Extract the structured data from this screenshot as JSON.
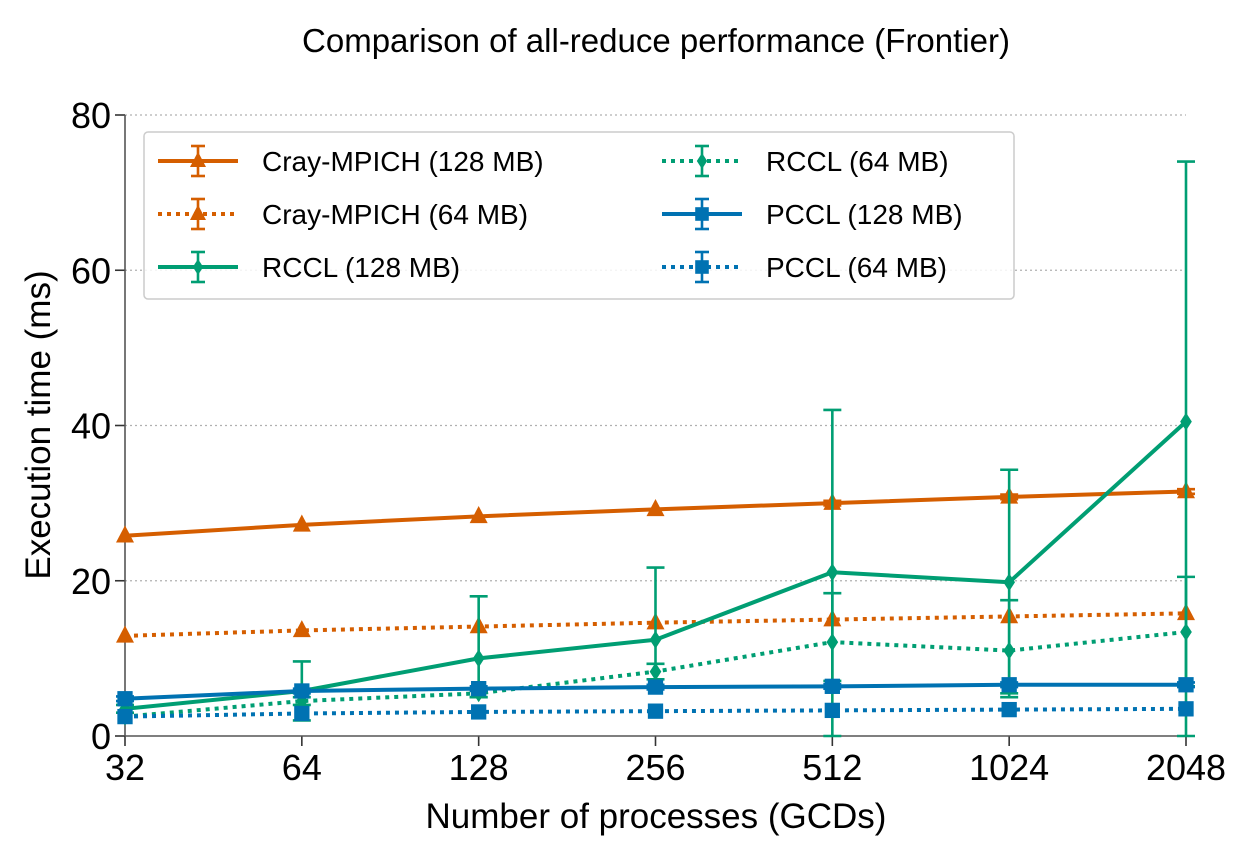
{
  "chart_data": {
    "type": "line",
    "title": "Comparison of all-reduce performance (Frontier)",
    "xlabel": "Number of processes (GCDs)",
    "ylabel": "Execution time (ms)",
    "categories": [
      "32",
      "64",
      "128",
      "256",
      "512",
      "1024",
      "2048"
    ],
    "xscale": "log2",
    "ylim": [
      0,
      80
    ],
    "yticks": [
      "0",
      "20",
      "40",
      "60",
      "80"
    ],
    "grid": "y-dotted",
    "legend": "top-left, two columns",
    "series": [
      {
        "name": "Cray-MPICH (128 MB)",
        "color": "#d55e00",
        "linestyle": "solid",
        "marker": "triangle",
        "values": [
          25.8,
          27.2,
          28.3,
          29.2,
          30.0,
          30.8,
          31.5
        ],
        "err_lo": [
          0.2,
          0.2,
          0.2,
          0.2,
          0.3,
          0.3,
          0.3
        ],
        "err_hi": [
          0.2,
          0.2,
          0.2,
          0.2,
          0.3,
          0.3,
          0.3
        ]
      },
      {
        "name": "Cray-MPICH (64 MB)",
        "color": "#d55e00",
        "linestyle": "dotted",
        "marker": "triangle",
        "values": [
          12.9,
          13.6,
          14.1,
          14.6,
          15.0,
          15.4,
          15.8
        ],
        "err_lo": [
          0.2,
          0.2,
          0.2,
          0.2,
          0.2,
          0.2,
          0.2
        ],
        "err_hi": [
          0.2,
          0.2,
          0.2,
          0.2,
          0.2,
          0.2,
          0.2
        ]
      },
      {
        "name": "RCCL (128 MB)",
        "color": "#009e73",
        "linestyle": "solid",
        "marker": "diamond",
        "values": [
          3.5,
          5.8,
          10.0,
          12.4,
          21.1,
          19.8,
          40.5
        ],
        "err_lo": [
          0.5,
          3.8,
          5.0,
          6.0,
          21.1,
          14.8,
          40.5
        ],
        "err_hi": [
          0.5,
          3.8,
          8.0,
          9.3,
          20.9,
          14.5,
          33.5
        ]
      },
      {
        "name": "RCCL (64 MB)",
        "color": "#009e73",
        "linestyle": "dotted",
        "marker": "diamond",
        "values": [
          2.5,
          4.5,
          5.5,
          8.3,
          12.1,
          11.0,
          13.4
        ],
        "err_lo": [
          0.2,
          0.5,
          0.5,
          1.0,
          5.0,
          5.5,
          7.0
        ],
        "err_hi": [
          0.2,
          0.5,
          0.5,
          1.0,
          6.3,
          6.5,
          7.1
        ]
      },
      {
        "name": "PCCL (128 MB)",
        "color": "#0072b2",
        "linestyle": "solid",
        "marker": "square",
        "values": [
          4.8,
          5.8,
          6.1,
          6.3,
          6.4,
          6.6,
          6.6
        ],
        "err_lo": [
          0.3,
          0.3,
          0.3,
          0.3,
          0.3,
          0.3,
          0.3
        ],
        "err_hi": [
          0.3,
          0.3,
          0.3,
          0.3,
          0.3,
          0.3,
          0.3
        ]
      },
      {
        "name": "PCCL (64 MB)",
        "color": "#0072b2",
        "linestyle": "dotted",
        "marker": "square",
        "values": [
          2.5,
          2.9,
          3.1,
          3.2,
          3.3,
          3.4,
          3.5
        ],
        "err_lo": [
          0.2,
          0.2,
          0.2,
          0.2,
          0.2,
          0.2,
          0.2
        ],
        "err_hi": [
          0.2,
          0.2,
          0.2,
          0.2,
          0.2,
          0.2,
          0.2
        ]
      }
    ]
  }
}
